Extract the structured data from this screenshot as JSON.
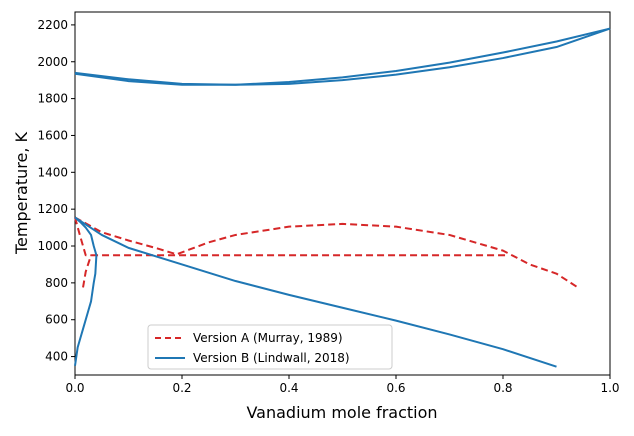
{
  "chart_data": {
    "type": "line",
    "title": "",
    "xlabel": "Vanadium mole fraction",
    "ylabel": "Temperature, K",
    "xlim": [
      0.0,
      1.0
    ],
    "ylim": [
      300,
      2270
    ],
    "grid": false,
    "legend_position": "lower-left",
    "x_ticks": [
      0.0,
      0.2,
      0.4,
      0.6,
      0.8,
      1.0
    ],
    "x_tick_labels": [
      "0.0",
      "0.2",
      "0.4",
      "0.6",
      "0.8",
      "1.0"
    ],
    "y_ticks": [
      400,
      600,
      800,
      1000,
      1200,
      1400,
      1600,
      1800,
      2000,
      2200
    ],
    "y_tick_labels": [
      "400",
      "600",
      "800",
      "1000",
      "1200",
      "1400",
      "1600",
      "1800",
      "2000",
      "2200"
    ],
    "series": [
      {
        "name": "Version A (Murray, 1989)",
        "color": "#d62728",
        "style": "dashed",
        "segments": [
          {
            "x": [
              0.0,
              0.05,
              0.1,
              0.15,
              0.19,
              0.25,
              0.3,
              0.4,
              0.5,
              0.6,
              0.7,
              0.8,
              0.85,
              0.9,
              0.94
            ],
            "y": [
              1155,
              1075,
              1030,
              990,
              955,
              1020,
              1060,
              1105,
              1120,
              1105,
              1060,
              975,
              900,
              850,
              775
            ]
          },
          {
            "x": [
              0.0,
              0.01,
              0.02,
              0.03
            ],
            "y": [
              1155,
              1050,
              950,
              950
            ]
          },
          {
            "x": [
              0.015,
              0.02,
              0.03
            ],
            "y": [
              775,
              860,
              950
            ]
          },
          {
            "x": [
              0.03,
              0.81
            ],
            "y": [
              950,
              950
            ]
          }
        ]
      },
      {
        "name": "Version B (Lindwall, 2018)",
        "color": "#1f77b4",
        "style": "solid",
        "segments": [
          {
            "x": [
              0.0,
              0.1,
              0.2,
              0.3,
              0.4,
              0.5,
              0.6,
              0.7,
              0.8,
              0.9,
              1.0
            ],
            "y": [
              1940,
              1905,
              1880,
              1875,
              1880,
              1900,
              1930,
              1970,
              2020,
              2080,
              2180
            ]
          },
          {
            "x": [
              0.0,
              0.1,
              0.2,
              0.3,
              0.4,
              0.5,
              0.6,
              0.7,
              0.8,
              0.9,
              1.0
            ],
            "y": [
              1935,
              1895,
              1875,
              1875,
              1890,
              1915,
              1950,
              1995,
              2050,
              2110,
              2180
            ]
          },
          {
            "x": [
              0.0,
              0.05,
              0.1,
              0.2,
              0.3,
              0.4,
              0.5,
              0.6,
              0.7,
              0.8,
              0.9
            ],
            "y": [
              1155,
              1060,
              990,
              900,
              810,
              735,
              665,
              595,
              520,
              440,
              345
            ]
          },
          {
            "x": [
              0.0,
              0.01,
              0.02,
              0.03,
              0.035,
              0.04
            ],
            "y": [
              1155,
              1130,
              1100,
              1060,
              1000,
              950
            ]
          },
          {
            "x": [
              0.04,
              0.038,
              0.035,
              0.03,
              0.025,
              0.02,
              0.015,
              0.01,
              0.005,
              0.0
            ],
            "y": [
              950,
              850,
              800,
              700,
              650,
              600,
              550,
              500,
              450,
              350
            ]
          }
        ]
      }
    ]
  }
}
